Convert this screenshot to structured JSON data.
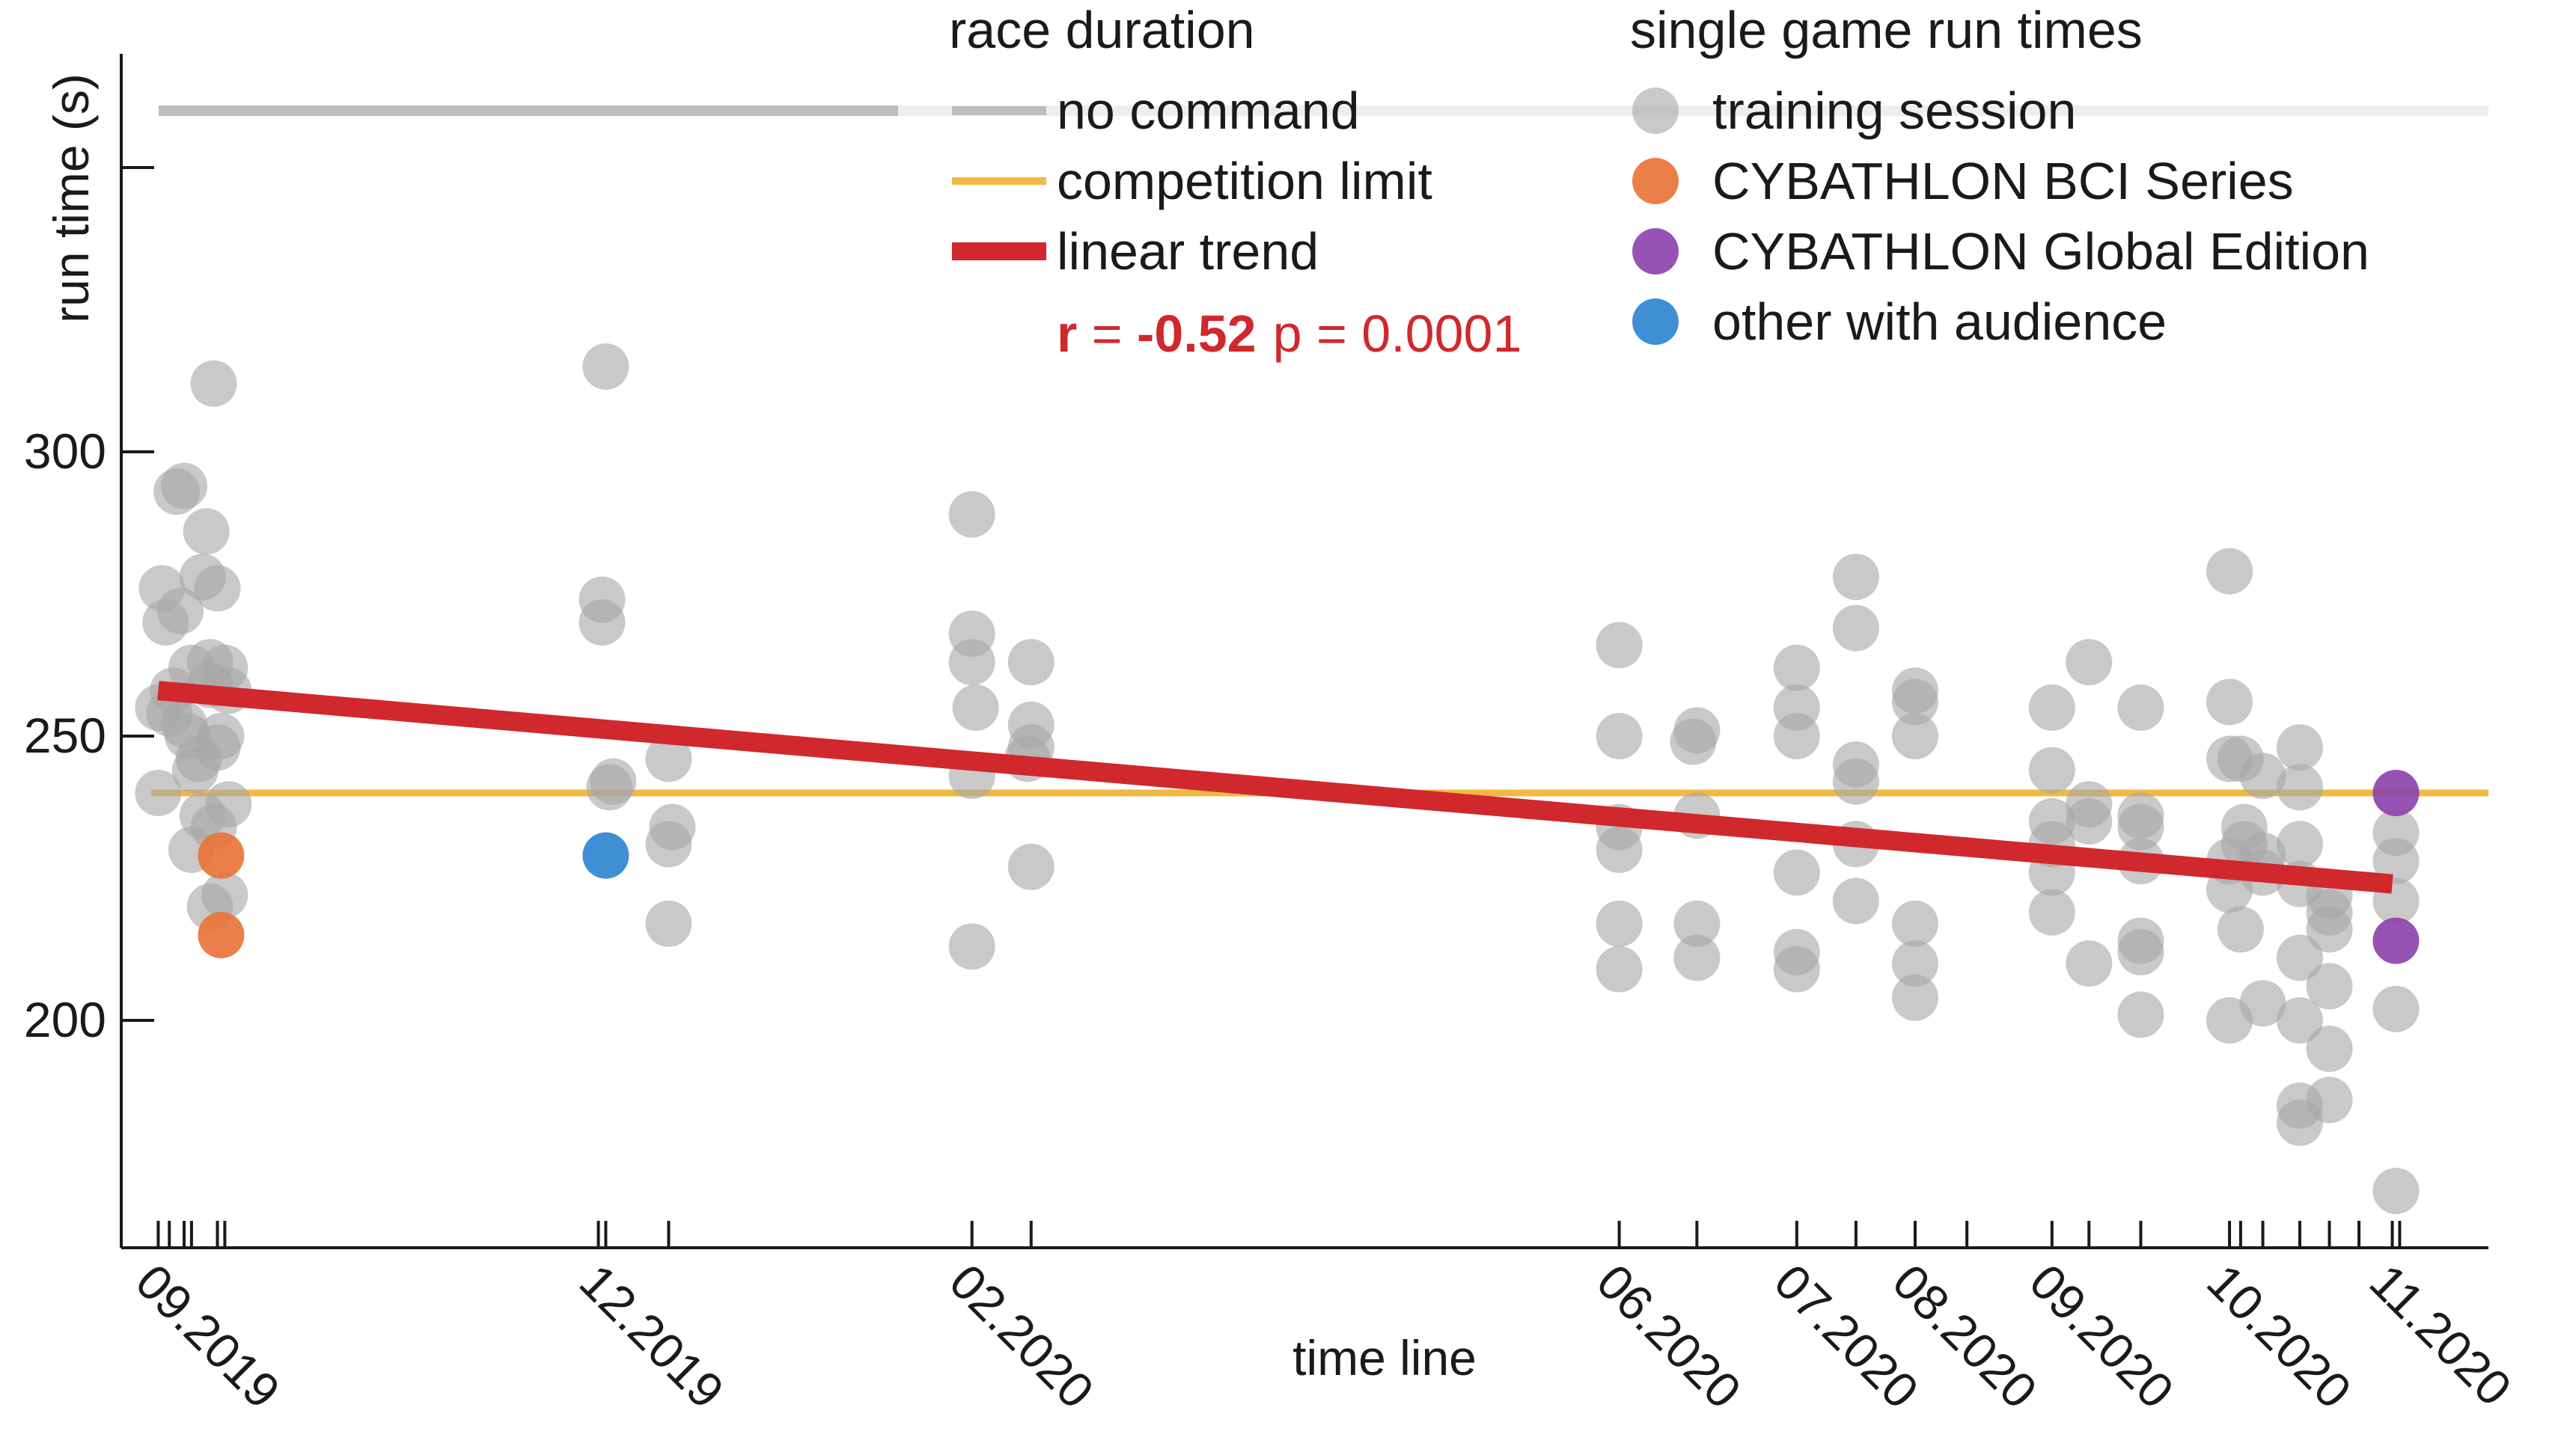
{
  "chart_data": {
    "type": "scatter",
    "ylabel": "run time (s)",
    "xlabel": "time line",
    "ylim": [
      160,
      370
    ],
    "yticks": [
      200,
      250,
      300
    ],
    "xlim": [
      0,
      64
    ],
    "x_tick_labels": [
      {
        "label": "09.2019",
        "x": 1.0
      },
      {
        "label": "12.2019",
        "x": 13.0
      },
      {
        "label": "02.2020",
        "x": 23.0
      },
      {
        "label": "06.2020",
        "x": 40.5
      },
      {
        "label": "07.2020",
        "x": 45.3
      },
      {
        "label": "08.2020",
        "x": 48.5
      },
      {
        "label": "09.2020",
        "x": 52.2
      },
      {
        "label": "10.2020",
        "x": 57.0
      },
      {
        "label": "11.2020",
        "x": 61.4
      }
    ],
    "session_ticks": [
      1.0,
      1.3,
      1.7,
      1.9,
      2.6,
      2.8,
      12.9,
      13.1,
      14.8,
      23.0,
      24.6,
      40.5,
      42.6,
      45.3,
      46.9,
      48.5,
      49.9,
      52.2,
      53.2,
      54.6,
      57.0,
      57.3,
      57.9,
      58.9,
      59.7,
      60.5,
      61.4,
      61.6
    ],
    "reference_lines": {
      "no_command": 360,
      "competition_limit": 240
    },
    "linear_trend": {
      "x0": 1.0,
      "y0": 258,
      "x1": 61.4,
      "y1": 224
    },
    "stats": {
      "r_label": "r",
      "r_value": "-0.52",
      "p_label": "p = 0.0001",
      "eq": " = "
    },
    "legend": {
      "race_title": "race duration",
      "race_items": [
        "no command",
        "competition limit",
        "linear trend"
      ],
      "runs_title": "single game run times",
      "runs_items": [
        "training session",
        "CYBATHLON BCI Series",
        "CYBATHLON Global Edition",
        "other with audience"
      ]
    },
    "colors": {
      "training": "#a8a8a8",
      "bci_series": "#e8743b",
      "global_edition": "#8e44ad",
      "audience": "#2e86cf",
      "no_command": "#bdbdbd",
      "competition_limit": "#f0b942",
      "trend": "#d0282c",
      "axis": "#1a1a1a"
    },
    "series": [
      {
        "name": "training session",
        "points": [
          [
            1.0,
            255
          ],
          [
            1.0,
            240
          ],
          [
            1.1,
            276
          ],
          [
            1.2,
            270
          ],
          [
            1.4,
            258
          ],
          [
            1.5,
            293
          ],
          [
            1.7,
            294
          ],
          [
            1.9,
            262
          ],
          [
            2.0,
            244
          ],
          [
            1.6,
            272
          ],
          [
            1.8,
            250
          ],
          [
            1.9,
            230
          ],
          [
            1.7,
            252
          ],
          [
            2.3,
            286
          ],
          [
            2.4,
            263
          ],
          [
            2.5,
            312
          ],
          [
            2.2,
            278
          ],
          [
            2.1,
            246
          ],
          [
            2.2,
            236
          ],
          [
            2.4,
            259
          ],
          [
            2.6,
            276
          ],
          [
            2.7,
            250
          ],
          [
            2.8,
            262
          ],
          [
            2.9,
            258
          ],
          [
            2.6,
            248
          ],
          [
            2.5,
            234
          ],
          [
            2.4,
            220
          ],
          [
            2.8,
            222
          ],
          [
            2.9,
            238
          ],
          [
            1.3,
            254
          ],
          [
            13.1,
            315
          ],
          [
            13.0,
            274
          ],
          [
            13.0,
            270
          ],
          [
            13.2,
            241
          ],
          [
            13.3,
            242
          ],
          [
            14.8,
            246
          ],
          [
            14.9,
            234
          ],
          [
            14.8,
            231
          ],
          [
            14.8,
            217
          ],
          [
            23.0,
            289
          ],
          [
            23.0,
            268
          ],
          [
            23.0,
            263
          ],
          [
            23.1,
            255
          ],
          [
            23.0,
            243
          ],
          [
            23.0,
            213
          ],
          [
            24.6,
            263
          ],
          [
            24.6,
            252
          ],
          [
            24.6,
            248
          ],
          [
            24.5,
            246
          ],
          [
            24.6,
            227
          ],
          [
            40.5,
            266
          ],
          [
            40.5,
            250
          ],
          [
            40.5,
            234
          ],
          [
            40.5,
            230
          ],
          [
            40.5,
            217
          ],
          [
            40.5,
            209
          ],
          [
            42.6,
            251
          ],
          [
            42.5,
            249
          ],
          [
            42.6,
            236
          ],
          [
            42.6,
            217
          ],
          [
            42.6,
            211
          ],
          [
            45.3,
            262
          ],
          [
            45.3,
            255
          ],
          [
            45.3,
            250
          ],
          [
            45.3,
            226
          ],
          [
            45.3,
            212
          ],
          [
            45.3,
            209
          ],
          [
            46.9,
            278
          ],
          [
            46.9,
            269
          ],
          [
            46.9,
            245
          ],
          [
            46.9,
            242
          ],
          [
            46.9,
            231
          ],
          [
            46.9,
            221
          ],
          [
            48.5,
            258
          ],
          [
            48.5,
            256
          ],
          [
            48.5,
            250
          ],
          [
            48.5,
            217
          ],
          [
            48.5,
            210
          ],
          [
            48.5,
            204
          ],
          [
            52.2,
            255
          ],
          [
            52.2,
            244
          ],
          [
            52.2,
            235
          ],
          [
            52.2,
            231
          ],
          [
            52.2,
            226
          ],
          [
            52.2,
            219
          ],
          [
            53.2,
            263
          ],
          [
            53.2,
            238
          ],
          [
            53.2,
            235
          ],
          [
            53.2,
            210
          ],
          [
            54.6,
            255
          ],
          [
            54.6,
            236
          ],
          [
            54.6,
            234
          ],
          [
            54.6,
            228
          ],
          [
            54.6,
            214
          ],
          [
            54.6,
            212
          ],
          [
            54.6,
            201
          ],
          [
            57.0,
            279
          ],
          [
            57.0,
            256
          ],
          [
            57.0,
            246
          ],
          [
            57.0,
            228
          ],
          [
            57.0,
            223
          ],
          [
            57.0,
            200
          ],
          [
            57.3,
            246
          ],
          [
            57.4,
            234
          ],
          [
            57.4,
            231
          ],
          [
            57.3,
            216
          ],
          [
            57.9,
            243
          ],
          [
            57.9,
            229
          ],
          [
            57.9,
            226
          ],
          [
            57.9,
            203
          ],
          [
            58.9,
            248
          ],
          [
            58.9,
            241
          ],
          [
            58.9,
            231
          ],
          [
            58.9,
            224
          ],
          [
            58.9,
            211
          ],
          [
            58.9,
            200
          ],
          [
            58.9,
            185
          ],
          [
            58.9,
            182
          ],
          [
            59.7,
            222
          ],
          [
            59.7,
            219
          ],
          [
            59.7,
            216
          ],
          [
            59.7,
            206
          ],
          [
            59.7,
            195
          ],
          [
            59.7,
            186
          ],
          [
            61.5,
            233
          ],
          [
            61.5,
            228
          ],
          [
            61.5,
            221
          ],
          [
            61.5,
            202
          ],
          [
            61.5,
            170
          ]
        ]
      },
      {
        "name": "CYBATHLON BCI Series",
        "points": [
          [
            2.7,
            229
          ],
          [
            2.7,
            215
          ]
        ]
      },
      {
        "name": "CYBATHLON Global Edition",
        "points": [
          [
            61.5,
            240
          ],
          [
            61.5,
            214
          ]
        ]
      },
      {
        "name": "other with audience",
        "points": [
          [
            13.1,
            229
          ]
        ]
      }
    ]
  }
}
